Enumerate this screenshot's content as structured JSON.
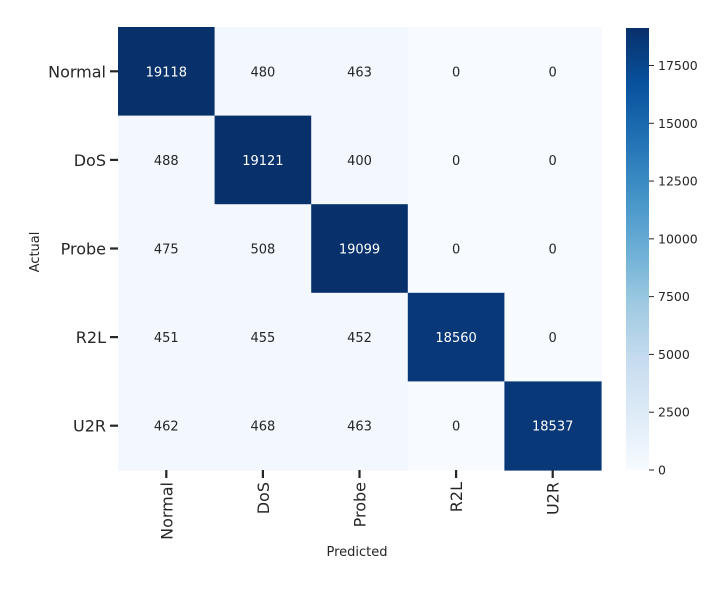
{
  "chart_data": {
    "type": "heatmap",
    "title": "",
    "xlabel": "Predicted",
    "ylabel": "Actual",
    "x_categories": [
      "Normal",
      "DoS",
      "Probe",
      "R2L",
      "U2R"
    ],
    "y_categories": [
      "Normal",
      "DoS",
      "Probe",
      "R2L",
      "U2R"
    ],
    "values": [
      [
        19118,
        480,
        463,
        0,
        0
      ],
      [
        488,
        19121,
        400,
        0,
        0
      ],
      [
        475,
        508,
        19099,
        0,
        0
      ],
      [
        451,
        455,
        452,
        18560,
        0
      ],
      [
        462,
        468,
        463,
        0,
        18537
      ]
    ],
    "colormap": "Blues",
    "vmin": 0,
    "vmax": 19121,
    "colorbar_ticks": [
      0,
      2500,
      5000,
      7500,
      10000,
      12500,
      15000,
      17500
    ],
    "colors": {
      "low": "#f7fbff",
      "high": "#08306b"
    }
  }
}
